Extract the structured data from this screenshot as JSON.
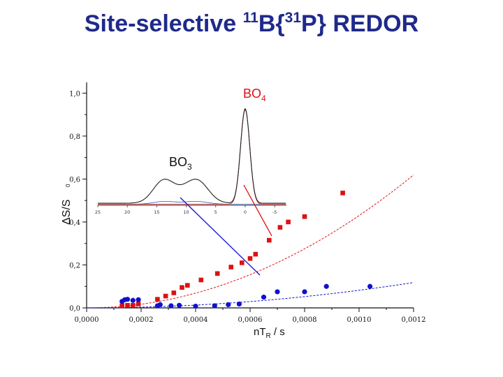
{
  "title": {
    "part1": "Site-selective ",
    "sup1": "11",
    "part2": "B{",
    "sup2": "31",
    "part3": "P} REDOR"
  },
  "annotations": {
    "bo4": {
      "main": "BO",
      "sub": "4"
    },
    "bo3": {
      "main": "BO",
      "sub": "3"
    }
  },
  "colors": {
    "bo4": "#dd1111",
    "bo3": "#1111cc",
    "title": "#1f2a8a"
  },
  "chart_data": [
    {
      "type": "scatter",
      "xlabel": "nT",
      "xlabel_sub": "R",
      "xlabel_suffix": " / s",
      "ylabel": "ΔS/S",
      "ylabel_small": "0",
      "xlim": [
        0,
        0.0012
      ],
      "ylim": [
        0,
        1.05
      ],
      "xticks": [
        "0,0000",
        "0,0002",
        "0,0004",
        "0,0006",
        "0,0008",
        "0,0010",
        "0,0012"
      ],
      "yticks": [
        "0,0",
        "0,2",
        "0,4",
        "0,6",
        "0,8",
        "1,0"
      ],
      "series": [
        {
          "key": "bo4",
          "marker": "square",
          "color": "#dd1111",
          "points": [
            [
              0.00013,
              0.01
            ],
            [
              0.00015,
              0.012
            ],
            [
              0.00017,
              0.012
            ],
            [
              0.00019,
              0.018
            ],
            [
              0.00026,
              0.04
            ],
            [
              0.00029,
              0.055
            ],
            [
              0.00032,
              0.07
            ],
            [
              0.00035,
              0.095
            ],
            [
              0.00037,
              0.105
            ],
            [
              0.00042,
              0.13
            ],
            [
              0.00048,
              0.16
            ],
            [
              0.00053,
              0.19
            ],
            [
              0.00057,
              0.21
            ],
            [
              0.0006,
              0.23
            ],
            [
              0.00062,
              0.25
            ],
            [
              0.00067,
              0.315
            ],
            [
              0.00071,
              0.375
            ],
            [
              0.00074,
              0.4
            ],
            [
              0.0008,
              0.425
            ],
            [
              0.00094,
              0.535
            ]
          ],
          "fit": {
            "a": 430000,
            "xmax": 0.0012
          }
        },
        {
          "key": "bo3",
          "marker": "circle",
          "color": "#1111cc",
          "points": [
            [
              0.00013,
              0.03
            ],
            [
              0.00014,
              0.038
            ],
            [
              0.00015,
              0.04
            ],
            [
              0.00017,
              0.035
            ],
            [
              0.00019,
              0.038
            ],
            [
              0.00026,
              0.01
            ],
            [
              0.00027,
              0.015
            ],
            [
              0.00031,
              0.01
            ],
            [
              0.00034,
              0.012
            ],
            [
              0.0004,
              0.008
            ],
            [
              0.00047,
              0.01
            ],
            [
              0.00052,
              0.015
            ],
            [
              0.00056,
              0.018
            ],
            [
              0.00065,
              0.05
            ],
            [
              0.0007,
              0.075
            ],
            [
              0.0008,
              0.075
            ],
            [
              0.00088,
              0.1
            ],
            [
              0.00104,
              0.1
            ]
          ],
          "fit": {
            "a": 82000,
            "xmax": 0.0012
          }
        }
      ]
    },
    {
      "type": "line",
      "role": "inset-spectrum",
      "xlim": [
        25,
        -7
      ],
      "xticks": [
        "25",
        "20",
        "15",
        "10",
        "5",
        "0",
        "-5"
      ],
      "series": [
        {
          "name": "BO4",
          "peak_center": 0,
          "peak_height": 1.0
        },
        {
          "name": "BO3",
          "peaks": [
            14,
            8
          ],
          "peak_height": 0.36
        }
      ]
    }
  ]
}
